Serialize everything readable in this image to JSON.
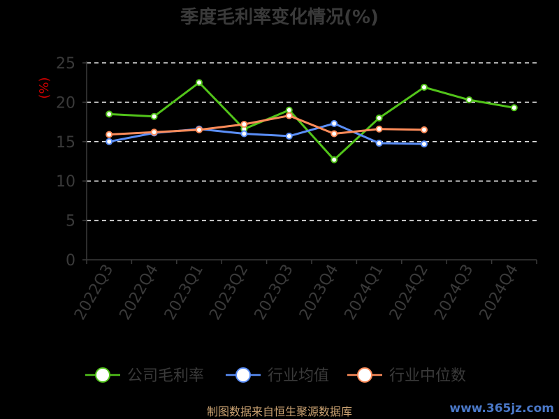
{
  "chart_data": {
    "type": "line",
    "title": "季度毛利率变化情况(%)",
    "ylabel": "(%)",
    "categories": [
      "2022Q3",
      "2022Q4",
      "2023Q1",
      "2023Q2",
      "2023Q3",
      "2023Q4",
      "2024Q1",
      "2024Q2",
      "2024Q3",
      "2024Q4"
    ],
    "ylim": [
      0,
      25
    ],
    "yticks": [
      0,
      5,
      10,
      15,
      20,
      25
    ],
    "grid": true,
    "legend_position": "bottom",
    "series": [
      {
        "name": "公司毛利率",
        "color": "#52c41a",
        "values": [
          18.5,
          18.2,
          22.5,
          16.6,
          19.0,
          12.7,
          18.0,
          21.9,
          20.3,
          19.3
        ]
      },
      {
        "name": "行业均值",
        "color": "#5b8ff9",
        "values": [
          15.0,
          16.1,
          16.6,
          16.0,
          15.7,
          17.3,
          14.8,
          14.7,
          null,
          null
        ]
      },
      {
        "name": "行业中位数",
        "color": "#ff8c5a",
        "values": [
          15.9,
          16.2,
          16.5,
          17.2,
          18.3,
          16.0,
          16.6,
          16.5,
          null,
          null
        ]
      }
    ]
  },
  "footer": "制图数据来自恒生聚源数据库",
  "watermark": "www.365jz.com"
}
